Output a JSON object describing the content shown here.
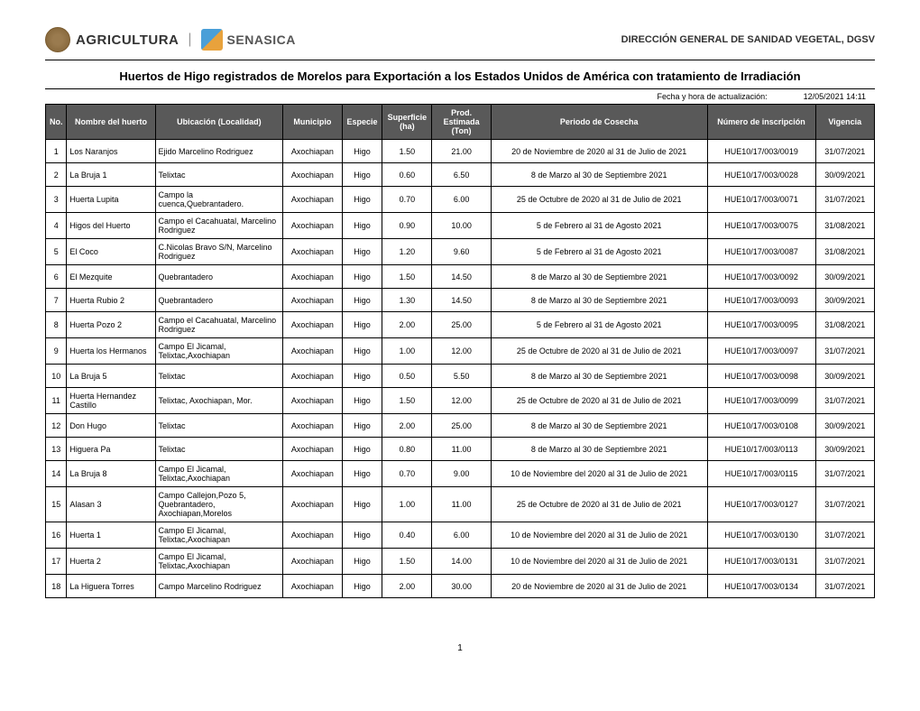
{
  "header": {
    "agricultura_label": "AGRICULTURA",
    "senasica_label": "SENASICA",
    "direccion": "DIRECCIÓN GENERAL DE SANIDAD VEGETAL, DGSV"
  },
  "title": "Huertos de Higo registrados de Morelos para Exportación a los Estados Unidos de América con tratamiento de Irradiación",
  "date_label": "Fecha y hora de actualización:",
  "date_value": "12/05/2021 14:11",
  "columns": {
    "no": "No.",
    "nombre": "Nombre del huerto",
    "ubicacion": "Ubicación (Localidad)",
    "municipio": "Municipio",
    "especie": "Especie",
    "superficie": "Superficie (ha)",
    "prod": "Prod. Estimada (Ton)",
    "periodo": "Periodo de Cosecha",
    "inscripcion": "Número de inscripción",
    "vigencia": "Vigencia"
  },
  "rows": [
    {
      "no": "1",
      "nombre": "Los Naranjos",
      "ubicacion": "Ejido Marcelino Rodriguez",
      "municipio": "Axochiapan",
      "especie": "Higo",
      "sup": "1.50",
      "prod": "21.00",
      "periodo": "20 de Noviembre de 2020 al 31 de Julio de 2021",
      "inscr": "HUE10/17/003/0019",
      "vig": "31/07/2021"
    },
    {
      "no": "2",
      "nombre": "La Bruja 1",
      "ubicacion": "Telixtac",
      "municipio": "Axochiapan",
      "especie": "Higo",
      "sup": "0.60",
      "prod": "6.50",
      "periodo": "8 de Marzo   al  30 de Septiembre 2021",
      "inscr": "HUE10/17/003/0028",
      "vig": "30/09/2021"
    },
    {
      "no": "3",
      "nombre": "Huerta Lupita",
      "ubicacion": "Campo la cuenca,Quebrantadero.",
      "municipio": "Axochiapan",
      "especie": "Higo",
      "sup": "0.70",
      "prod": "6.00",
      "periodo": "25 de Octubre de 2020  al 31 de Julio de 2021",
      "inscr": "HUE10/17/003/0071",
      "vig": "31/07/2021"
    },
    {
      "no": "4",
      "nombre": "Higos del Huerto",
      "ubicacion": "Campo el Cacahuatal, Marcelino Rodriguez",
      "municipio": "Axochiapan",
      "especie": "Higo",
      "sup": "0.90",
      "prod": "10.00",
      "periodo": "5 de Febrero   al  31 de Agosto 2021",
      "inscr": "HUE10/17/003/0075",
      "vig": "31/08/2021"
    },
    {
      "no": "5",
      "nombre": "El Coco",
      "ubicacion": "C.Nicolas Bravo S/N, Marcelino Rodriguez",
      "municipio": "Axochiapan",
      "especie": "Higo",
      "sup": "1.20",
      "prod": "9.60",
      "periodo": "5 de Febrero   al  31 de Agosto 2021",
      "inscr": "HUE10/17/003/0087",
      "vig": "31/08/2021"
    },
    {
      "no": "6",
      "nombre": "El Mezquite",
      "ubicacion": "Quebrantadero",
      "municipio": "Axochiapan",
      "especie": "Higo",
      "sup": "1.50",
      "prod": "14.50",
      "periodo": "8 de Marzo   al  30 de Septiembre 2021",
      "inscr": "HUE10/17/003/0092",
      "vig": "30/09/2021"
    },
    {
      "no": "7",
      "nombre": "Huerta Rubio 2",
      "ubicacion": "Quebrantadero",
      "municipio": "Axochiapan",
      "especie": "Higo",
      "sup": "1.30",
      "prod": "14.50",
      "periodo": "8 de Marzo   al  30 de Septiembre 2021",
      "inscr": "HUE10/17/003/0093",
      "vig": "30/09/2021"
    },
    {
      "no": "8",
      "nombre": "Huerta Pozo 2",
      "ubicacion": "Campo el Cacahuatal, Marcelino Rodriguez",
      "municipio": "Axochiapan",
      "especie": "Higo",
      "sup": "2.00",
      "prod": "25.00",
      "periodo": "5 de Febrero   al  31 de Agosto 2021",
      "inscr": "HUE10/17/003/0095",
      "vig": "31/08/2021"
    },
    {
      "no": "9",
      "nombre": "Huerta los Hermanos",
      "ubicacion": "Campo El Jicamal, Telixtac,Axochiapan",
      "municipio": "Axochiapan",
      "especie": "Higo",
      "sup": "1.00",
      "prod": "12.00",
      "periodo": "25 de Octubre de 2020  al 31 de Julio de 2021",
      "inscr": "HUE10/17/003/0097",
      "vig": "31/07/2021"
    },
    {
      "no": "10",
      "nombre": "La Bruja  5",
      "ubicacion": "Telixtac",
      "municipio": "Axochiapan",
      "especie": "Higo",
      "sup": "0.50",
      "prod": "5.50",
      "periodo": "8 de Marzo   al  30 de Septiembre 2021",
      "inscr": "HUE10/17/003/0098",
      "vig": "30/09/2021"
    },
    {
      "no": "11",
      "nombre": "Huerta Hernandez Castillo",
      "ubicacion": "Telixtac, Axochiapan, Mor.",
      "municipio": "Axochiapan",
      "especie": "Higo",
      "sup": "1.50",
      "prod": "12.00",
      "periodo": "25 de Octubre de 2020  al 31 de Julio de 2021",
      "inscr": "HUE10/17/003/0099",
      "vig": "31/07/2021"
    },
    {
      "no": "12",
      "nombre": "Don Hugo",
      "ubicacion": "Telixtac",
      "municipio": "Axochiapan",
      "especie": "Higo",
      "sup": "2.00",
      "prod": "25.00",
      "periodo": "8 de Marzo   al  30 de Septiembre 2021",
      "inscr": "HUE10/17/003/0108",
      "vig": "30/09/2021"
    },
    {
      "no": "13",
      "nombre": "Higuera Pa",
      "ubicacion": "Telixtac",
      "municipio": "Axochiapan",
      "especie": "Higo",
      "sup": "0.80",
      "prod": "11.00",
      "periodo": "8 de Marzo   al  30 de Septiembre 2021",
      "inscr": "HUE10/17/003/0113",
      "vig": "30/09/2021"
    },
    {
      "no": "14",
      "nombre": "La Bruja 8",
      "ubicacion": "Campo El Jicamal, Telixtac,Axochiapan",
      "municipio": "Axochiapan",
      "especie": "Higo",
      "sup": "0.70",
      "prod": "9.00",
      "periodo": "10 de Noviembre del 2020 al 31 de Julio de 2021",
      "inscr": "HUE10/17/003/0115",
      "vig": "31/07/2021"
    },
    {
      "no": "15",
      "nombre": "Alasan 3",
      "ubicacion": "Campo Callejon,Pozo 5, Quebrantadero, Axochiapan,Morelos",
      "municipio": "Axochiapan",
      "especie": "Higo",
      "sup": "1.00",
      "prod": "11.00",
      "periodo": "25 de Octubre de 2020  al 31 de Julio de 2021",
      "inscr": "HUE10/17/003/0127",
      "vig": "31/07/2021"
    },
    {
      "no": "16",
      "nombre": "Huerta 1",
      "ubicacion": "Campo El Jicamal, Telixtac,Axochiapan",
      "municipio": "Axochiapan",
      "especie": "Higo",
      "sup": "0.40",
      "prod": "6.00",
      "periodo": "10 de Noviembre del 2020 al 31 de Julio de 2021",
      "inscr": "HUE10/17/003/0130",
      "vig": "31/07/2021"
    },
    {
      "no": "17",
      "nombre": "Huerta 2",
      "ubicacion": "Campo El Jicamal, Telixtac,Axochiapan",
      "municipio": "Axochiapan",
      "especie": "Higo",
      "sup": "1.50",
      "prod": "14.00",
      "periodo": "10 de Noviembre del 2020 al 31 de Julio de 2021",
      "inscr": "HUE10/17/003/0131",
      "vig": "31/07/2021"
    },
    {
      "no": "18",
      "nombre": "La Higuera Torres",
      "ubicacion": "Campo Marcelino Rodriguez",
      "municipio": "Axochiapan",
      "especie": "Higo",
      "sup": "2.00",
      "prod": "30.00",
      "periodo": "20 de Noviembre de 2020 al 31 de Julio de 2021",
      "inscr": "HUE10/17/003/0134",
      "vig": "31/07/2021"
    }
  ],
  "page_number": "1"
}
